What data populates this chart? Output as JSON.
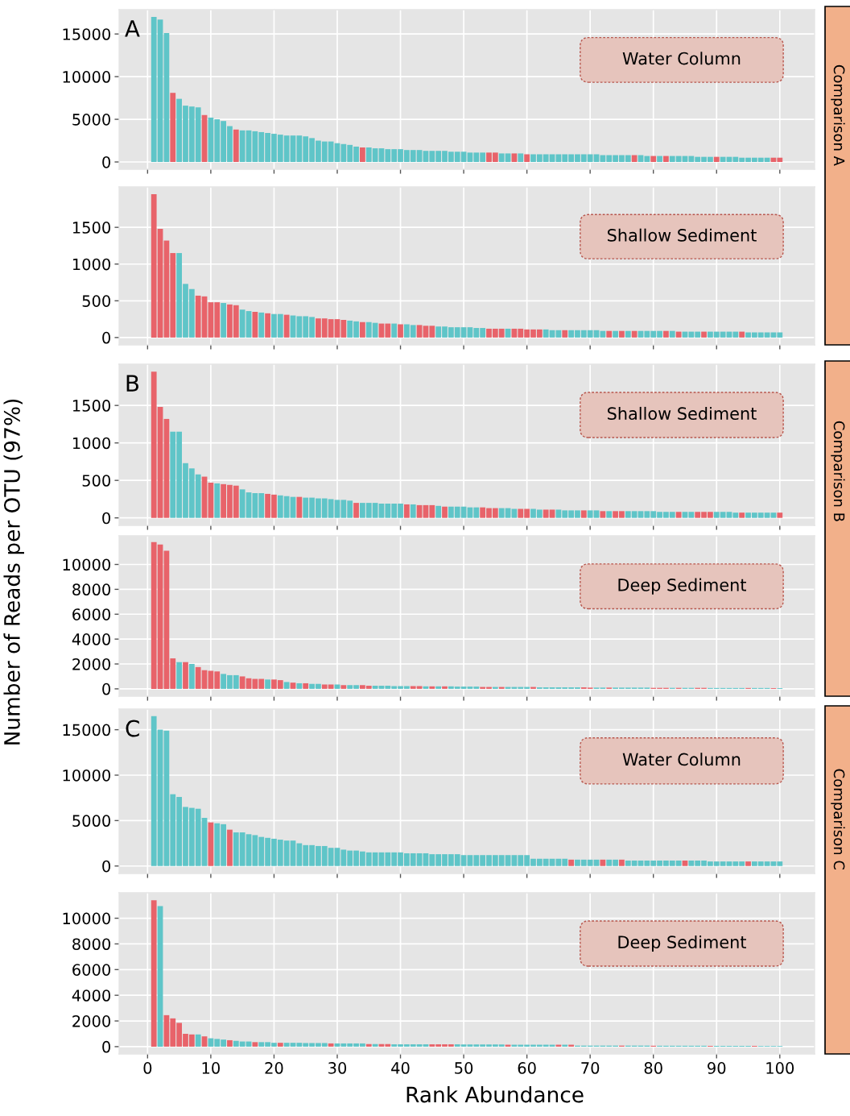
{
  "chart_data": [
    {
      "type": "bar",
      "title": "Water Column",
      "y2label": "Comparison A",
      "annotations": [
        "A"
      ],
      "x": [
        1,
        2,
        3,
        4,
        5,
        6,
        7,
        8,
        9,
        10,
        11,
        12,
        13,
        14,
        15,
        16,
        17,
        18,
        19,
        20,
        21,
        22,
        23,
        24,
        25,
        26,
        27,
        28,
        29,
        30,
        31,
        32,
        33,
        34,
        35,
        36,
        37,
        38,
        39,
        40,
        41,
        42,
        43,
        44,
        45,
        46,
        47,
        48,
        49,
        50,
        51,
        52,
        53,
        54,
        55,
        56,
        57,
        58,
        59,
        60,
        61,
        62,
        63,
        64,
        65,
        66,
        67,
        68,
        69,
        70,
        71,
        72,
        73,
        74,
        75,
        76,
        77,
        78,
        79,
        80,
        81,
        82,
        83,
        84,
        85,
        86,
        87,
        88,
        89,
        90,
        91,
        92,
        93,
        94,
        95,
        96,
        97,
        98,
        99,
        100
      ],
      "values": [
        17000,
        16700,
        15100,
        8100,
        7400,
        6600,
        6500,
        6400,
        5500,
        5200,
        5000,
        4800,
        4200,
        3800,
        3700,
        3700,
        3600,
        3500,
        3400,
        3300,
        3200,
        3100,
        3100,
        3100,
        3000,
        2800,
        2500,
        2400,
        2400,
        2200,
        2100,
        2000,
        1800,
        1700,
        1700,
        1600,
        1600,
        1500,
        1500,
        1500,
        1400,
        1400,
        1400,
        1300,
        1300,
        1300,
        1300,
        1200,
        1200,
        1200,
        1100,
        1100,
        1100,
        1100,
        1100,
        1000,
        1000,
        1000,
        1000,
        900,
        900,
        900,
        900,
        900,
        900,
        900,
        900,
        900,
        900,
        900,
        900,
        800,
        800,
        800,
        800,
        800,
        800,
        800,
        700,
        700,
        700,
        700,
        700,
        700,
        700,
        700,
        600,
        600,
        600,
        600,
        600,
        600,
        600,
        500,
        500,
        500,
        500,
        500,
        500,
        500
      ],
      "colors": [
        "#5fc5c8",
        "#5fc5c8",
        "#5fc5c8",
        "#e8636a",
        "#5fc5c8",
        "#5fc5c8",
        "#5fc5c8",
        "#5fc5c8",
        "#e8636a",
        "#5fc5c8",
        "#5fc5c8",
        "#5fc5c8",
        "#5fc5c8",
        "#e8636a",
        "#5fc5c8",
        "#5fc5c8",
        "#5fc5c8",
        "#5fc5c8",
        "#5fc5c8",
        "#5fc5c8",
        "#5fc5c8",
        "#5fc5c8",
        "#5fc5c8",
        "#5fc5c8",
        "#5fc5c8",
        "#5fc5c8",
        "#5fc5c8",
        "#5fc5c8",
        "#5fc5c8",
        "#5fc5c8",
        "#5fc5c8",
        "#5fc5c8",
        "#5fc5c8",
        "#e8636a",
        "#5fc5c8",
        "#5fc5c8",
        "#5fc5c8",
        "#5fc5c8",
        "#5fc5c8",
        "#5fc5c8",
        "#5fc5c8",
        "#5fc5c8",
        "#5fc5c8",
        "#5fc5c8",
        "#5fc5c8",
        "#5fc5c8",
        "#5fc5c8",
        "#5fc5c8",
        "#5fc5c8",
        "#5fc5c8",
        "#5fc5c8",
        "#5fc5c8",
        "#5fc5c8",
        "#e8636a",
        "#e8636a",
        "#5fc5c8",
        "#5fc5c8",
        "#e8636a",
        "#5fc5c8",
        "#e8636a",
        "#5fc5c8",
        "#5fc5c8",
        "#5fc5c8",
        "#5fc5c8",
        "#5fc5c8",
        "#5fc5c8",
        "#5fc5c8",
        "#5fc5c8",
        "#5fc5c8",
        "#5fc5c8",
        "#5fc5c8",
        "#5fc5c8",
        "#5fc5c8",
        "#5fc5c8",
        "#5fc5c8",
        "#5fc5c8",
        "#e8636a",
        "#5fc5c8",
        "#5fc5c8",
        "#e8636a",
        "#5fc5c8",
        "#e8636a",
        "#5fc5c8",
        "#5fc5c8",
        "#5fc5c8",
        "#5fc5c8",
        "#5fc5c8",
        "#5fc5c8",
        "#5fc5c8",
        "#e8636a",
        "#5fc5c8",
        "#5fc5c8",
        "#5fc5c8",
        "#5fc5c8",
        "#5fc5c8",
        "#5fc5c8",
        "#5fc5c8",
        "#5fc5c8",
        "#e8636a",
        "#e8636a"
      ],
      "xlim": [
        -4.5,
        105.5
      ],
      "xticks": [
        0,
        10,
        20,
        30,
        40,
        50,
        60,
        70,
        80,
        90,
        100
      ],
      "ylim": [
        -850,
        17850
      ],
      "yticks": [
        0,
        5000,
        10000,
        15000
      ],
      "grid": true,
      "tick_labels": "y"
    },
    {
      "type": "bar",
      "title": "Shallow Sediment",
      "x": [
        1,
        2,
        3,
        4,
        5,
        6,
        7,
        8,
        9,
        10,
        11,
        12,
        13,
        14,
        15,
        16,
        17,
        18,
        19,
        20,
        21,
        22,
        23,
        24,
        25,
        26,
        27,
        28,
        29,
        30,
        31,
        32,
        33,
        34,
        35,
        36,
        37,
        38,
        39,
        40,
        41,
        42,
        43,
        44,
        45,
        46,
        47,
        48,
        49,
        50,
        51,
        52,
        53,
        54,
        55,
        56,
        57,
        58,
        59,
        60,
        61,
        62,
        63,
        64,
        65,
        66,
        67,
        68,
        69,
        70,
        71,
        72,
        73,
        74,
        75,
        76,
        77,
        78,
        79,
        80,
        81,
        82,
        83,
        84,
        85,
        86,
        87,
        88,
        89,
        90,
        91,
        92,
        93,
        94,
        95,
        96,
        97,
        98,
        99,
        100
      ],
      "values": [
        1950,
        1480,
        1320,
        1150,
        1150,
        730,
        660,
        570,
        560,
        480,
        480,
        470,
        450,
        440,
        380,
        360,
        350,
        340,
        330,
        320,
        320,
        310,
        300,
        290,
        290,
        280,
        260,
        260,
        250,
        250,
        240,
        230,
        220,
        210,
        210,
        200,
        190,
        190,
        190,
        180,
        180,
        170,
        170,
        160,
        160,
        150,
        150,
        140,
        140,
        140,
        140,
        130,
        130,
        120,
        120,
        120,
        120,
        120,
        120,
        110,
        110,
        110,
        110,
        100,
        100,
        100,
        100,
        100,
        100,
        100,
        100,
        90,
        90,
        90,
        90,
        90,
        90,
        90,
        90,
        90,
        90,
        90,
        90,
        80,
        80,
        80,
        80,
        80,
        80,
        80,
        80,
        80,
        80,
        80,
        70,
        70,
        70,
        70,
        70,
        70
      ],
      "colors": [
        "#e8636a",
        "#e8636a",
        "#e8636a",
        "#e8636a",
        "#5fc5c8",
        "#5fc5c8",
        "#5fc5c8",
        "#e8636a",
        "#e8636a",
        "#e8636a",
        "#e8636a",
        "#5fc5c8",
        "#e8636a",
        "#e8636a",
        "#5fc5c8",
        "#5fc5c8",
        "#e8636a",
        "#5fc5c8",
        "#e8636a",
        "#5fc5c8",
        "#5fc5c8",
        "#e8636a",
        "#5fc5c8",
        "#5fc5c8",
        "#5fc5c8",
        "#5fc5c8",
        "#e8636a",
        "#e8636a",
        "#e8636a",
        "#e8636a",
        "#e8636a",
        "#5fc5c8",
        "#5fc5c8",
        "#e8636a",
        "#5fc5c8",
        "#5fc5c8",
        "#e8636a",
        "#e8636a",
        "#5fc5c8",
        "#e8636a",
        "#5fc5c8",
        "#5fc5c8",
        "#e8636a",
        "#e8636a",
        "#e8636a",
        "#5fc5c8",
        "#5fc5c8",
        "#5fc5c8",
        "#5fc5c8",
        "#5fc5c8",
        "#5fc5c8",
        "#5fc5c8",
        "#5fc5c8",
        "#e8636a",
        "#e8636a",
        "#e8636a",
        "#5fc5c8",
        "#e8636a",
        "#e8636a",
        "#e8636a",
        "#e8636a",
        "#e8636a",
        "#5fc5c8",
        "#5fc5c8",
        "#5fc5c8",
        "#e8636a",
        "#5fc5c8",
        "#5fc5c8",
        "#5fc5c8",
        "#5fc5c8",
        "#5fc5c8",
        "#5fc5c8",
        "#e8636a",
        "#5fc5c8",
        "#e8636a",
        "#5fc5c8",
        "#e8636a",
        "#5fc5c8",
        "#5fc5c8",
        "#5fc5c8",
        "#5fc5c8",
        "#e8636a",
        "#5fc5c8",
        "#e8636a",
        "#5fc5c8",
        "#5fc5c8",
        "#5fc5c8",
        "#e8636a",
        "#5fc5c8",
        "#5fc5c8",
        "#5fc5c8",
        "#5fc5c8",
        "#5fc5c8",
        "#e8636a",
        "#5fc5c8",
        "#5fc5c8",
        "#5fc5c8",
        "#5fc5c8",
        "#5fc5c8",
        "#5fc5c8"
      ],
      "xlim": [
        -4.5,
        105.5
      ],
      "xticks": [
        0,
        10,
        20,
        30,
        40,
        50,
        60,
        70,
        80,
        90,
        100
      ],
      "ylim": [
        -100,
        2050
      ],
      "yticks": [
        0,
        500,
        1000,
        1500
      ],
      "grid": true,
      "tick_labels": "y"
    },
    {
      "type": "bar",
      "title": "Shallow Sediment",
      "y2label": "Comparison B",
      "annotations": [
        "B"
      ],
      "x": [
        1,
        2,
        3,
        4,
        5,
        6,
        7,
        8,
        9,
        10,
        11,
        12,
        13,
        14,
        15,
        16,
        17,
        18,
        19,
        20,
        21,
        22,
        23,
        24,
        25,
        26,
        27,
        28,
        29,
        30,
        31,
        32,
        33,
        34,
        35,
        36,
        37,
        38,
        39,
        40,
        41,
        42,
        43,
        44,
        45,
        46,
        47,
        48,
        49,
        50,
        51,
        52,
        53,
        54,
        55,
        56,
        57,
        58,
        59,
        60,
        61,
        62,
        63,
        64,
        65,
        66,
        67,
        68,
        69,
        70,
        71,
        72,
        73,
        74,
        75,
        76,
        77,
        78,
        79,
        80,
        81,
        82,
        83,
        84,
        85,
        86,
        87,
        88,
        89,
        90,
        91,
        92,
        93,
        94,
        95,
        96,
        97,
        98,
        99,
        100
      ],
      "values": [
        1950,
        1480,
        1320,
        1150,
        1150,
        730,
        660,
        580,
        550,
        470,
        460,
        450,
        440,
        430,
        380,
        340,
        330,
        330,
        320,
        310,
        300,
        290,
        280,
        280,
        270,
        270,
        260,
        260,
        250,
        240,
        240,
        230,
        200,
        200,
        200,
        200,
        190,
        190,
        190,
        190,
        180,
        180,
        170,
        170,
        170,
        160,
        150,
        150,
        150,
        150,
        140,
        140,
        140,
        130,
        130,
        130,
        130,
        120,
        120,
        120,
        120,
        110,
        110,
        110,
        110,
        100,
        100,
        100,
        100,
        100,
        100,
        90,
        90,
        90,
        90,
        90,
        90,
        90,
        90,
        90,
        80,
        80,
        80,
        80,
        80,
        80,
        80,
        80,
        80,
        80,
        80,
        80,
        70,
        70,
        70,
        70,
        70,
        70,
        70,
        70
      ],
      "colors": [
        "#e8636a",
        "#e8636a",
        "#e8636a",
        "#5fc5c8",
        "#5fc5c8",
        "#5fc5c8",
        "#5fc5c8",
        "#5fc5c8",
        "#e8636a",
        "#e8636a",
        "#5fc5c8",
        "#e8636a",
        "#e8636a",
        "#e8636a",
        "#5fc5c8",
        "#5fc5c8",
        "#5fc5c8",
        "#5fc5c8",
        "#e8636a",
        "#e8636a",
        "#5fc5c8",
        "#5fc5c8",
        "#5fc5c8",
        "#e8636a",
        "#5fc5c8",
        "#5fc5c8",
        "#5fc5c8",
        "#5fc5c8",
        "#5fc5c8",
        "#5fc5c8",
        "#5fc5c8",
        "#5fc5c8",
        "#e8636a",
        "#5fc5c8",
        "#5fc5c8",
        "#5fc5c8",
        "#5fc5c8",
        "#5fc5c8",
        "#5fc5c8",
        "#5fc5c8",
        "#e8636a",
        "#5fc5c8",
        "#e8636a",
        "#e8636a",
        "#e8636a",
        "#5fc5c8",
        "#e8636a",
        "#5fc5c8",
        "#5fc5c8",
        "#5fc5c8",
        "#5fc5c8",
        "#5fc5c8",
        "#e8636a",
        "#e8636a",
        "#e8636a",
        "#5fc5c8",
        "#5fc5c8",
        "#5fc5c8",
        "#e8636a",
        "#e8636a",
        "#5fc5c8",
        "#5fc5c8",
        "#e8636a",
        "#e8636a",
        "#5fc5c8",
        "#5fc5c8",
        "#5fc5c8",
        "#5fc5c8",
        "#e8636a",
        "#5fc5c8",
        "#5fc5c8",
        "#e8636a",
        "#5fc5c8",
        "#e8636a",
        "#e8636a",
        "#5fc5c8",
        "#5fc5c8",
        "#5fc5c8",
        "#5fc5c8",
        "#5fc5c8",
        "#5fc5c8",
        "#5fc5c8",
        "#5fc5c8",
        "#e8636a",
        "#5fc5c8",
        "#5fc5c8",
        "#e8636a",
        "#e8636a",
        "#e8636a",
        "#5fc5c8",
        "#5fc5c8",
        "#5fc5c8",
        "#5fc5c8",
        "#e8636a",
        "#5fc5c8",
        "#5fc5c8",
        "#5fc5c8",
        "#5fc5c8",
        "#5fc5c8",
        "#e8636a"
      ],
      "xlim": [
        -4.5,
        105.5
      ],
      "xticks": [
        0,
        10,
        20,
        30,
        40,
        50,
        60,
        70,
        80,
        90,
        100
      ],
      "ylim": [
        -100,
        2050
      ],
      "yticks": [
        0,
        500,
        1000,
        1500
      ],
      "grid": true,
      "tick_labels": "y"
    },
    {
      "type": "bar",
      "title": "Deep Sediment",
      "ylabel": "Number of Reads per OTU (97%)",
      "x": [
        1,
        2,
        3,
        4,
        5,
        6,
        7,
        8,
        9,
        10,
        11,
        12,
        13,
        14,
        15,
        16,
        17,
        18,
        19,
        20,
        21,
        22,
        23,
        24,
        25,
        26,
        27,
        28,
        29,
        30,
        31,
        32,
        33,
        34,
        35,
        36,
        37,
        38,
        39,
        40,
        41,
        42,
        43,
        44,
        45,
        46,
        47,
        48,
        49,
        50,
        51,
        52,
        53,
        54,
        55,
        56,
        57,
        58,
        59,
        60,
        61,
        62,
        63,
        64,
        65,
        66,
        67,
        68,
        69,
        70,
        71,
        72,
        73,
        74,
        75,
        76,
        77,
        78,
        79,
        80,
        81,
        82,
        83,
        84,
        85,
        86,
        87,
        88,
        89,
        90,
        91,
        92,
        93,
        94,
        95,
        96,
        97,
        98,
        99,
        100
      ],
      "values": [
        11800,
        11600,
        11100,
        2450,
        2150,
        2150,
        2000,
        1750,
        1500,
        1450,
        1400,
        1200,
        1100,
        1100,
        1000,
        850,
        800,
        800,
        750,
        750,
        700,
        550,
        500,
        450,
        450,
        400,
        400,
        350,
        350,
        350,
        300,
        300,
        300,
        300,
        250,
        250,
        250,
        250,
        220,
        220,
        220,
        220,
        220,
        200,
        200,
        200,
        200,
        200,
        180,
        180,
        180,
        180,
        150,
        150,
        150,
        150,
        150,
        150,
        150,
        150,
        150,
        120,
        120,
        120,
        120,
        120,
        120,
        120,
        120,
        100,
        100,
        100,
        100,
        100,
        100,
        100,
        100,
        100,
        100,
        80,
        80,
        80,
        80,
        80,
        80,
        80,
        80,
        80,
        70,
        70,
        70,
        70,
        70,
        70,
        70,
        70,
        70,
        70,
        60,
        60
      ],
      "colors": [
        "#e8636a",
        "#e8636a",
        "#e8636a",
        "#e8636a",
        "#5fc5c8",
        "#e8636a",
        "#5fc5c8",
        "#e8636a",
        "#e8636a",
        "#e8636a",
        "#e8636a",
        "#5fc5c8",
        "#5fc5c8",
        "#5fc5c8",
        "#e8636a",
        "#e8636a",
        "#e8636a",
        "#e8636a",
        "#5fc5c8",
        "#e8636a",
        "#e8636a",
        "#5fc5c8",
        "#e8636a",
        "#5fc5c8",
        "#e8636a",
        "#5fc5c8",
        "#5fc5c8",
        "#e8636a",
        "#e8636a",
        "#5fc5c8",
        "#e8636a",
        "#5fc5c8",
        "#5fc5c8",
        "#e8636a",
        "#e8636a",
        "#5fc5c8",
        "#5fc5c8",
        "#5fc5c8",
        "#5fc5c8",
        "#5fc5c8",
        "#5fc5c8",
        "#e8636a",
        "#e8636a",
        "#5fc5c8",
        "#e8636a",
        "#5fc5c8",
        "#e8636a",
        "#5fc5c8",
        "#5fc5c8",
        "#5fc5c8",
        "#5fc5c8",
        "#5fc5c8",
        "#e8636a",
        "#e8636a",
        "#5fc5c8",
        "#e8636a",
        "#5fc5c8",
        "#5fc5c8",
        "#5fc5c8",
        "#5fc5c8",
        "#e8636a",
        "#5fc5c8",
        "#5fc5c8",
        "#5fc5c8",
        "#5fc5c8",
        "#5fc5c8",
        "#5fc5c8",
        "#5fc5c8",
        "#e8636a",
        "#e8636a",
        "#5fc5c8",
        "#5fc5c8",
        "#e8636a",
        "#5fc5c8",
        "#5fc5c8",
        "#5fc5c8",
        "#5fc5c8",
        "#5fc5c8",
        "#5fc5c8",
        "#e8636a",
        "#e8636a",
        "#e8636a",
        "#5fc5c8",
        "#e8636a",
        "#5fc5c8",
        "#5fc5c8",
        "#e8636a",
        "#e8636a",
        "#5fc5c8",
        "#5fc5c8",
        "#5fc5c8",
        "#5fc5c8",
        "#5fc5c8",
        "#5fc5c8",
        "#e8636a",
        "#5fc5c8",
        "#5fc5c8",
        "#5fc5c8",
        "#e8636a",
        "#5fc5c8"
      ],
      "xlim": [
        -4.5,
        105.5
      ],
      "xticks": [
        0,
        10,
        20,
        30,
        40,
        50,
        60,
        70,
        80,
        90,
        100
      ],
      "ylim": [
        -590,
        12300
      ],
      "yticks": [
        0,
        2000,
        4000,
        6000,
        8000,
        10000
      ],
      "grid": true,
      "tick_labels": "y"
    },
    {
      "type": "bar",
      "title": "Water Column",
      "y2label": "Comparison C",
      "annotations": [
        "C"
      ],
      "x": [
        1,
        2,
        3,
        4,
        5,
        6,
        7,
        8,
        9,
        10,
        11,
        12,
        13,
        14,
        15,
        16,
        17,
        18,
        19,
        20,
        21,
        22,
        23,
        24,
        25,
        26,
        27,
        28,
        29,
        30,
        31,
        32,
        33,
        34,
        35,
        36,
        37,
        38,
        39,
        40,
        41,
        42,
        43,
        44,
        45,
        46,
        47,
        48,
        49,
        50,
        51,
        52,
        53,
        54,
        55,
        56,
        57,
        58,
        59,
        60,
        61,
        62,
        63,
        64,
        65,
        66,
        67,
        68,
        69,
        70,
        71,
        72,
        73,
        74,
        75,
        76,
        77,
        78,
        79,
        80,
        81,
        82,
        83,
        84,
        85,
        86,
        87,
        88,
        89,
        90,
        91,
        92,
        93,
        94,
        95,
        96,
        97,
        98,
        99,
        100
      ],
      "values": [
        16500,
        15000,
        14900,
        7900,
        7600,
        6500,
        6400,
        6300,
        5300,
        4800,
        4700,
        4600,
        4000,
        3700,
        3700,
        3500,
        3400,
        3200,
        3100,
        3000,
        2900,
        2800,
        2800,
        2500,
        2300,
        2300,
        2200,
        2200,
        2000,
        2000,
        1800,
        1700,
        1700,
        1600,
        1500,
        1500,
        1500,
        1500,
        1500,
        1500,
        1400,
        1400,
        1400,
        1400,
        1300,
        1300,
        1300,
        1300,
        1300,
        1200,
        1200,
        1200,
        1200,
        1200,
        1200,
        1200,
        1200,
        1200,
        1200,
        1200,
        800,
        800,
        800,
        800,
        800,
        800,
        700,
        700,
        700,
        700,
        700,
        700,
        700,
        700,
        700,
        600,
        600,
        600,
        600,
        600,
        600,
        600,
        600,
        600,
        600,
        600,
        600,
        600,
        500,
        500,
        500,
        500,
        500,
        500,
        500,
        500,
        500,
        500,
        500,
        500
      ],
      "colors": [
        "#5fc5c8",
        "#5fc5c8",
        "#5fc5c8",
        "#5fc5c8",
        "#5fc5c8",
        "#5fc5c8",
        "#5fc5c8",
        "#5fc5c8",
        "#5fc5c8",
        "#e8636a",
        "#5fc5c8",
        "#5fc5c8",
        "#e8636a",
        "#5fc5c8",
        "#5fc5c8",
        "#5fc5c8",
        "#5fc5c8",
        "#5fc5c8",
        "#5fc5c8",
        "#5fc5c8",
        "#5fc5c8",
        "#5fc5c8",
        "#5fc5c8",
        "#5fc5c8",
        "#5fc5c8",
        "#5fc5c8",
        "#5fc5c8",
        "#5fc5c8",
        "#5fc5c8",
        "#5fc5c8",
        "#5fc5c8",
        "#5fc5c8",
        "#5fc5c8",
        "#5fc5c8",
        "#5fc5c8",
        "#5fc5c8",
        "#5fc5c8",
        "#5fc5c8",
        "#5fc5c8",
        "#5fc5c8",
        "#5fc5c8",
        "#5fc5c8",
        "#5fc5c8",
        "#5fc5c8",
        "#5fc5c8",
        "#5fc5c8",
        "#5fc5c8",
        "#5fc5c8",
        "#5fc5c8",
        "#5fc5c8",
        "#5fc5c8",
        "#5fc5c8",
        "#5fc5c8",
        "#5fc5c8",
        "#5fc5c8",
        "#5fc5c8",
        "#5fc5c8",
        "#5fc5c8",
        "#5fc5c8",
        "#5fc5c8",
        "#5fc5c8",
        "#5fc5c8",
        "#5fc5c8",
        "#5fc5c8",
        "#5fc5c8",
        "#5fc5c8",
        "#e8636a",
        "#5fc5c8",
        "#5fc5c8",
        "#5fc5c8",
        "#5fc5c8",
        "#e8636a",
        "#5fc5c8",
        "#5fc5c8",
        "#e8636a",
        "#5fc5c8",
        "#5fc5c8",
        "#5fc5c8",
        "#5fc5c8",
        "#5fc5c8",
        "#5fc5c8",
        "#5fc5c8",
        "#5fc5c8",
        "#5fc5c8",
        "#e8636a",
        "#5fc5c8",
        "#5fc5c8",
        "#5fc5c8",
        "#5fc5c8",
        "#5fc5c8",
        "#5fc5c8",
        "#5fc5c8",
        "#5fc5c8",
        "#5fc5c8",
        "#e8636a",
        "#5fc5c8",
        "#5fc5c8",
        "#5fc5c8",
        "#5fc5c8",
        "#5fc5c8"
      ],
      "xlim": [
        -4.5,
        105.5
      ],
      "xticks": [
        0,
        10,
        20,
        30,
        40,
        50,
        60,
        70,
        80,
        90,
        100
      ],
      "ylim": [
        -820,
        17270
      ],
      "yticks": [
        0,
        5000,
        10000,
        15000
      ],
      "grid": true,
      "tick_labels": "y"
    },
    {
      "type": "bar",
      "title": "Deep Sediment",
      "xlabel": "Rank Abundance",
      "x": [
        1,
        2,
        3,
        4,
        5,
        6,
        7,
        8,
        9,
        10,
        11,
        12,
        13,
        14,
        15,
        16,
        17,
        18,
        19,
        20,
        21,
        22,
        23,
        24,
        25,
        26,
        27,
        28,
        29,
        30,
        31,
        32,
        33,
        34,
        35,
        36,
        37,
        38,
        39,
        40,
        41,
        42,
        43,
        44,
        45,
        46,
        47,
        48,
        49,
        50,
        51,
        52,
        53,
        54,
        55,
        56,
        57,
        58,
        59,
        60,
        61,
        62,
        63,
        64,
        65,
        66,
        67,
        68,
        69,
        70,
        71,
        72,
        73,
        74,
        75,
        76,
        77,
        78,
        79,
        80,
        81,
        82,
        83,
        84,
        85,
        86,
        87,
        88,
        89,
        90,
        91,
        92,
        93,
        94,
        95,
        96,
        97,
        98,
        99,
        100
      ],
      "values": [
        11400,
        10950,
        2450,
        2200,
        1850,
        1000,
        950,
        950,
        800,
        650,
        600,
        550,
        500,
        450,
        400,
        400,
        350,
        350,
        350,
        300,
        300,
        300,
        300,
        300,
        280,
        280,
        280,
        280,
        250,
        250,
        250,
        250,
        250,
        250,
        200,
        200,
        200,
        200,
        180,
        180,
        180,
        180,
        180,
        180,
        180,
        180,
        180,
        180,
        180,
        170,
        170,
        170,
        170,
        170,
        170,
        170,
        150,
        150,
        150,
        150,
        150,
        150,
        150,
        150,
        150,
        150,
        150,
        80,
        80,
        80,
        80,
        80,
        80,
        80,
        80,
        80,
        80,
        80,
        80,
        70,
        70,
        70,
        70,
        70,
        70,
        70,
        70,
        70,
        60,
        60,
        60,
        60,
        60,
        60,
        60,
        60,
        50,
        50,
        50,
        50
      ],
      "colors": [
        "#e8636a",
        "#5fc5c8",
        "#e8636a",
        "#e8636a",
        "#e8636a",
        "#e8636a",
        "#e8636a",
        "#5fc5c8",
        "#e8636a",
        "#5fc5c8",
        "#5fc5c8",
        "#5fc5c8",
        "#e8636a",
        "#5fc5c8",
        "#5fc5c8",
        "#5fc5c8",
        "#e8636a",
        "#5fc5c8",
        "#5fc5c8",
        "#5fc5c8",
        "#e8636a",
        "#5fc5c8",
        "#5fc5c8",
        "#5fc5c8",
        "#5fc5c8",
        "#5fc5c8",
        "#5fc5c8",
        "#5fc5c8",
        "#e8636a",
        "#5fc5c8",
        "#5fc5c8",
        "#5fc5c8",
        "#5fc5c8",
        "#5fc5c8",
        "#e8636a",
        "#5fc5c8",
        "#e8636a",
        "#e8636a",
        "#5fc5c8",
        "#5fc5c8",
        "#5fc5c8",
        "#5fc5c8",
        "#5fc5c8",
        "#5fc5c8",
        "#e8636a",
        "#e8636a",
        "#e8636a",
        "#e8636a",
        "#5fc5c8",
        "#5fc5c8",
        "#5fc5c8",
        "#5fc5c8",
        "#5fc5c8",
        "#5fc5c8",
        "#5fc5c8",
        "#5fc5c8",
        "#e8636a",
        "#5fc5c8",
        "#5fc5c8",
        "#5fc5c8",
        "#5fc5c8",
        "#5fc5c8",
        "#5fc5c8",
        "#5fc5c8",
        "#e8636a",
        "#5fc5c8",
        "#e8636a",
        "#5fc5c8",
        "#5fc5c8",
        "#5fc5c8",
        "#5fc5c8",
        "#5fc5c8",
        "#5fc5c8",
        "#5fc5c8",
        "#e8636a",
        "#5fc5c8",
        "#5fc5c8",
        "#5fc5c8",
        "#5fc5c8",
        "#e8636a",
        "#5fc5c8",
        "#5fc5c8",
        "#5fc5c8",
        "#5fc5c8",
        "#5fc5c8",
        "#5fc5c8",
        "#5fc5c8",
        "#5fc5c8",
        "#e8636a",
        "#5fc5c8",
        "#5fc5c8",
        "#5fc5c8",
        "#5fc5c8",
        "#5fc5c8",
        "#5fc5c8",
        "#e8636a",
        "#5fc5c8",
        "#5fc5c8",
        "#5fc5c8",
        "#5fc5c8"
      ],
      "xlim": [
        -4.5,
        105.5
      ],
      "xticks": [
        0,
        10,
        20,
        30,
        40,
        50,
        60,
        70,
        80,
        90,
        100
      ],
      "ylim": [
        -570,
        11980
      ],
      "yticks": [
        0,
        2000,
        4000,
        6000,
        8000,
        10000
      ],
      "grid": true
    }
  ]
}
